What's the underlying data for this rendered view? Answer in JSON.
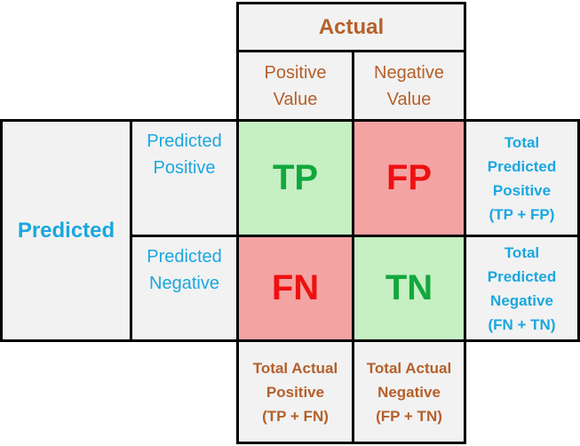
{
  "header": {
    "actual": "Actual",
    "positive_value": [
      "Positive",
      "Value"
    ],
    "negative_value": [
      "Negative",
      "Value"
    ]
  },
  "side": {
    "predicted": "Predicted",
    "predicted_positive": [
      "Predicted",
      "Positive"
    ],
    "predicted_negative": [
      "Predicted",
      "Negative"
    ]
  },
  "matrix": {
    "tp": "TP",
    "fp": "FP",
    "fn": "FN",
    "tn": "TN"
  },
  "row_totals": {
    "positive": [
      "Total",
      "Predicted",
      "Positive",
      "(TP + FP)"
    ],
    "negative": [
      "Total",
      "Predicted",
      "Negative",
      "(FN + TN)"
    ]
  },
  "col_totals": {
    "positive": [
      "Total Actual",
      "Positive",
      "(TP + FN)"
    ],
    "negative": [
      "Total Actual",
      "Negative",
      "(FP + TN)"
    ]
  },
  "colors": {
    "label_brown": "#b5602a",
    "label_blue": "#1aa7e0",
    "cell_green": "#c6efc3",
    "cell_red": "#f4a3a3",
    "text_green": "#11a83c",
    "text_red": "#ee1111"
  }
}
